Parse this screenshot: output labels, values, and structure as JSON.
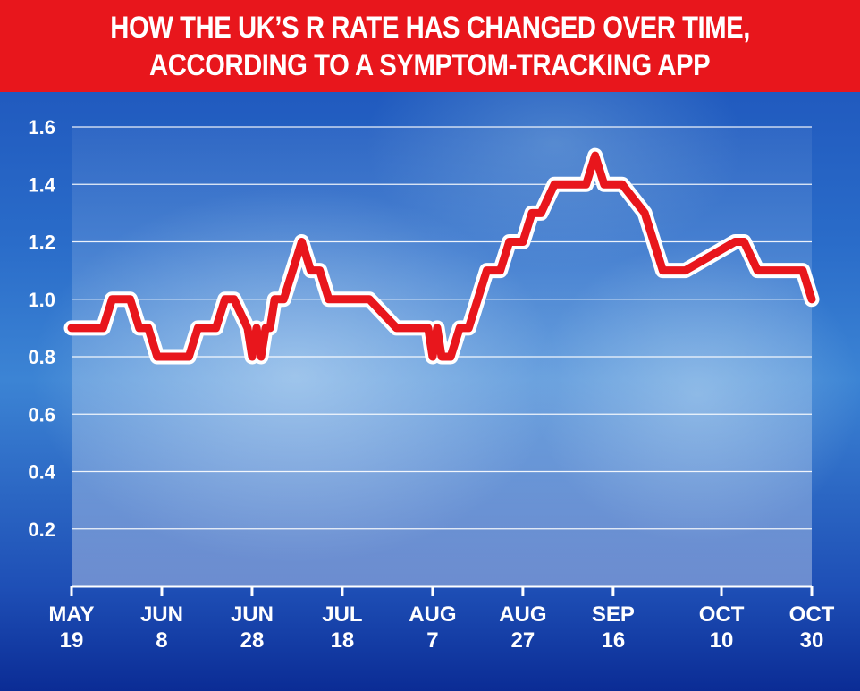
{
  "title_lines": [
    "HOW THE UK’S R RATE HAS CHANGED OVER TIME,",
    "ACCORDING TO A SYMPTOM-TRACKING APP"
  ],
  "colors": {
    "header_bg": "#e8161c",
    "line": "#e8161c",
    "line_outline": "#ffffff",
    "grid": "#ffffff",
    "text": "#ffffff"
  },
  "chart_data": {
    "type": "line",
    "title": "HOW THE UK’S R RATE HAS CHANGED OVER TIME, ACCORDING TO A SYMPTOM-TRACKING APP",
    "xlabel": "",
    "ylabel": "",
    "ylim": [
      0,
      1.6
    ],
    "yticks": [
      0.2,
      0.4,
      0.6,
      0.8,
      1.0,
      1.2,
      1.4,
      1.6
    ],
    "ytick_labels": [
      "0.2",
      "0.4",
      "0.6",
      "0.8",
      "1.0",
      "1.2",
      "1.4",
      "1.6"
    ],
    "grid": true,
    "xlim": [
      "2020-05-19",
      "2020-10-30"
    ],
    "xticks": [
      {
        "date": "2020-05-19",
        "month": "MAY",
        "day": "19"
      },
      {
        "date": "2020-06-08",
        "month": "JUN",
        "day": "8"
      },
      {
        "date": "2020-06-28",
        "month": "JUN",
        "day": "28"
      },
      {
        "date": "2020-07-18",
        "month": "JUL",
        "day": "18"
      },
      {
        "date": "2020-08-07",
        "month": "AUG",
        "day": "7"
      },
      {
        "date": "2020-08-27",
        "month": "AUG",
        "day": "27"
      },
      {
        "date": "2020-09-16",
        "month": "SEP",
        "day": "16"
      },
      {
        "date": "2020-10-10",
        "month": "OCT",
        "day": "10"
      },
      {
        "date": "2020-10-30",
        "month": "OCT",
        "day": "30"
      }
    ],
    "series": [
      {
        "x": [
          "2020-05-19",
          "2020-05-26",
          "2020-05-28",
          "2020-06-01",
          "2020-06-03",
          "2020-06-05",
          "2020-06-07",
          "2020-06-12",
          "2020-06-14",
          "2020-06-16",
          "2020-06-20",
          "2020-06-22",
          "2020-06-24",
          "2020-06-27",
          "2020-06-28",
          "2020-06-29",
          "2020-06-30",
          "2020-07-01",
          "2020-07-02",
          "2020-07-03",
          "2020-07-05",
          "2020-07-07",
          "2020-07-09",
          "2020-07-11",
          "2020-07-13",
          "2020-07-15",
          "2020-07-17",
          "2020-07-19",
          "2020-07-21",
          "2020-07-24",
          "2020-07-30",
          "2020-08-01",
          "2020-08-04",
          "2020-08-06",
          "2020-08-07",
          "2020-08-08",
          "2020-08-09",
          "2020-08-11",
          "2020-08-13",
          "2020-08-15",
          "2020-08-17",
          "2020-08-19",
          "2020-08-22",
          "2020-08-24",
          "2020-08-27",
          "2020-08-29",
          "2020-08-31",
          "2020-09-03",
          "2020-09-05",
          "2020-09-08",
          "2020-09-10",
          "2020-09-12",
          "2020-09-14",
          "2020-09-15",
          "2020-09-16",
          "2020-09-17",
          "2020-09-18",
          "2020-09-23",
          "2020-09-25",
          "2020-09-27",
          "2020-09-30",
          "2020-10-02",
          "2020-10-13",
          "2020-10-15",
          "2020-10-18",
          "2020-10-20",
          "2020-10-27",
          "2020-10-28",
          "2020-10-30"
        ],
        "y": [
          0.9,
          0.9,
          1.0,
          1.0,
          0.9,
          0.9,
          0.8,
          0.8,
          0.8,
          0.9,
          0.9,
          1.0,
          1.0,
          0.9,
          0.8,
          0.9,
          0.8,
          0.9,
          0.9,
          1.0,
          1.0,
          1.1,
          1.2,
          1.1,
          1.1,
          1.0,
          1.0,
          1.0,
          1.0,
          1.0,
          0.9,
          0.9,
          0.9,
          0.9,
          0.8,
          0.9,
          0.8,
          0.8,
          0.9,
          0.9,
          1.0,
          1.1,
          1.1,
          1.2,
          1.2,
          1.3,
          1.3,
          1.4,
          1.4,
          1.4,
          1.4,
          1.5,
          1.4,
          1.4,
          1.4,
          1.4,
          1.4,
          1.3,
          1.2,
          1.1,
          1.1,
          1.1,
          1.2,
          1.2,
          1.1,
          1.1,
          1.1,
          1.1,
          1.0
        ]
      }
    ]
  }
}
